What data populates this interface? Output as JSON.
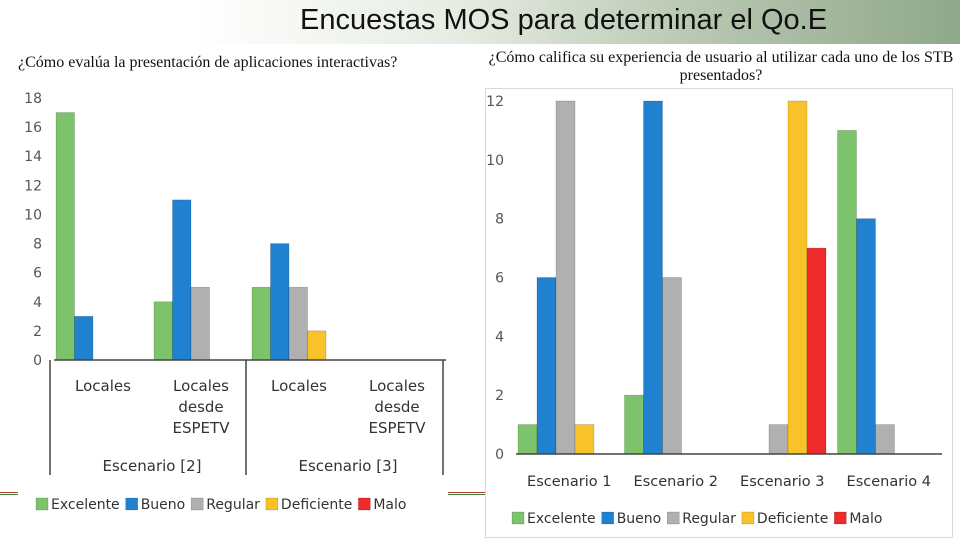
{
  "slide": {
    "title": "Encuestas MOS para determinar el Qo.E",
    "colors": {
      "Excelente": "#7dc36b",
      "Bueno": "#2181d1",
      "Regular": "#b0b0b0",
      "Deficiente": "#f8c22a",
      "Malo": "#ef2a2a"
    }
  },
  "chart_data": [
    {
      "type": "bar",
      "title": "¿Cómo evalúa la presentación de aplicaciones interactivas?",
      "categories": [
        "Locales",
        "Locales desde ESPETV",
        "Locales",
        "Locales desde ESPETV"
      ],
      "groups": [
        {
          "label": "Escenario [2]",
          "categories": [
            0,
            1
          ]
        },
        {
          "label": "Escenario [3]",
          "categories": [
            2,
            3
          ]
        }
      ],
      "series": [
        {
          "name": "Excelente",
          "values": [
            17,
            4,
            5,
            0
          ]
        },
        {
          "name": "Bueno",
          "values": [
            3,
            11,
            8,
            0
          ]
        },
        {
          "name": "Regular",
          "values": [
            0,
            5,
            5,
            0
          ]
        },
        {
          "name": "Deficiente",
          "values": [
            0,
            0,
            2,
            0
          ]
        },
        {
          "name": "Malo",
          "values": [
            0,
            0,
            0,
            0
          ]
        }
      ],
      "yticks": [
        "0",
        "2",
        "4",
        "6",
        "8",
        "10",
        "12",
        "14",
        "16",
        "18"
      ],
      "ylim": [
        0,
        18
      ],
      "grid": false,
      "legend": "bottom"
    },
    {
      "type": "bar",
      "title": "¿Cómo califica su experiencia de usuario al utilizar cada uno de los STB presentados?",
      "categories": [
        "Escenario 1",
        "Escenario 2",
        "Escenario 3",
        "Escenario 4"
      ],
      "series": [
        {
          "name": "Excelente",
          "values": [
            1,
            2,
            0,
            11
          ]
        },
        {
          "name": "Bueno",
          "values": [
            6,
            12,
            0,
            8
          ]
        },
        {
          "name": "Regular",
          "values": [
            12,
            6,
            1,
            1
          ]
        },
        {
          "name": "Deficiente",
          "values": [
            1,
            0,
            12,
            0
          ]
        },
        {
          "name": "Malo",
          "values": [
            0,
            0,
            7,
            0
          ]
        }
      ],
      "yticks": [
        "0",
        "2",
        "4",
        "6",
        "8",
        "10",
        "12"
      ],
      "ylim": [
        0,
        12
      ],
      "grid": false,
      "legend": "bottom"
    }
  ]
}
